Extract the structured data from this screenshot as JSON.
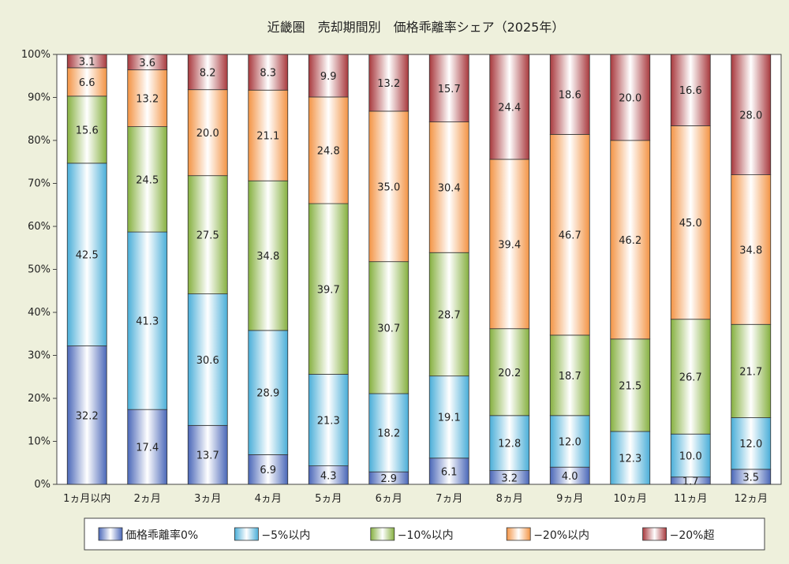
{
  "chart_data": {
    "type": "bar",
    "stacked": true,
    "percent": true,
    "title": "近畿圏　売却期間別　価格乖離率シェア（2025年）",
    "categories": [
      "1ヵ月以内",
      "2ヵ月",
      "3ヵ月",
      "4ヵ月",
      "5ヵ月",
      "6ヵ月",
      "7ヵ月",
      "8ヵ月",
      "9ヵ月",
      "10ヵ月",
      "11ヵ月",
      "12ヵ月"
    ],
    "y_ticks": [
      "0%",
      "10%",
      "20%",
      "30%",
      "40%",
      "50%",
      "60%",
      "70%",
      "80%",
      "90%",
      "100%"
    ],
    "ylim": [
      0,
      100
    ],
    "grid": false,
    "legend_position": "bottom",
    "series": [
      {
        "name": "価格乖離率0%",
        "color": "#4a67b8",
        "values": [
          32.2,
          17.4,
          13.7,
          6.9,
          4.3,
          2.9,
          6.1,
          3.2,
          4.0,
          null,
          1.7,
          3.5
        ]
      },
      {
        "name": "−5%以内",
        "color": "#4aaed8",
        "values": [
          42.5,
          41.3,
          30.6,
          28.9,
          21.3,
          18.2,
          19.1,
          12.8,
          12.0,
          12.3,
          10.0,
          12.0
        ]
      },
      {
        "name": "−10%以内",
        "color": "#86b040",
        "values": [
          15.6,
          24.5,
          27.5,
          34.8,
          39.7,
          30.7,
          28.7,
          20.2,
          18.7,
          21.5,
          26.7,
          21.7
        ]
      },
      {
        "name": "−20%以内",
        "color": "#f39445",
        "values": [
          6.6,
          13.2,
          20.0,
          21.1,
          24.8,
          35.0,
          30.4,
          39.4,
          46.7,
          46.2,
          45.0,
          34.8
        ]
      },
      {
        "name": "−20%超",
        "color": "#a8393d",
        "values": [
          3.1,
          3.6,
          8.2,
          8.3,
          9.9,
          13.2,
          15.7,
          24.4,
          18.6,
          20.0,
          16.6,
          28.0
        ]
      }
    ]
  }
}
